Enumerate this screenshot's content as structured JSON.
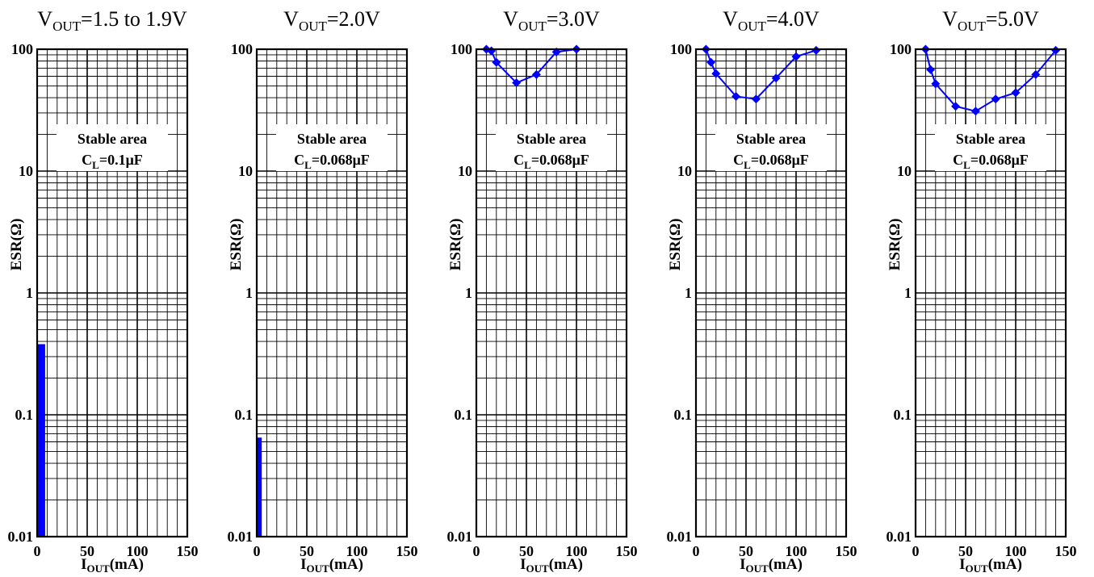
{
  "chart_data": [
    {
      "type": "scatter",
      "title": {
        "main": "V",
        "sub": "OUT",
        "rest": "=1.5 to 1.9V"
      },
      "xlabel": {
        "main": "I",
        "sub": "OUT",
        "rest": "(mA)"
      },
      "ylabel": "ESR(Ω)",
      "xlim": [
        0,
        150
      ],
      "ylim": [
        0.01,
        100
      ],
      "yscale": "log",
      "xticks": [
        "0",
        "50",
        "100",
        "150"
      ],
      "yticks": [
        "0.01",
        "0.1",
        "1",
        "10",
        "100"
      ],
      "grid": true,
      "annotation": {
        "line1": "Stable area",
        "line2_main": "C",
        "line2_sub": "L",
        "line2_rest": "=0.1μF"
      },
      "region": {
        "x": [
          0,
          8
        ],
        "y": [
          0.01,
          0.38
        ],
        "color": "#0000ff"
      },
      "series": []
    },
    {
      "type": "scatter",
      "title": {
        "main": "V",
        "sub": "OUT",
        "rest": "=2.0V"
      },
      "xlabel": {
        "main": "I",
        "sub": "OUT",
        "rest": "(mA)"
      },
      "ylabel": "ESR(Ω)",
      "xlim": [
        0,
        150
      ],
      "ylim": [
        0.01,
        100
      ],
      "yscale": "log",
      "xticks": [
        "0",
        "50",
        "100",
        "150"
      ],
      "yticks": [
        "0.01",
        "0.1",
        "1",
        "10",
        "100"
      ],
      "grid": true,
      "annotation": {
        "line1": "Stable area",
        "line2_main": "C",
        "line2_sub": "L",
        "line2_rest": "=0.068μF"
      },
      "region": {
        "x": [
          0,
          5
        ],
        "y": [
          0.01,
          0.065
        ],
        "color": "#0000ff"
      },
      "series": []
    },
    {
      "type": "line",
      "title": {
        "main": "V",
        "sub": "OUT",
        "rest": "=3.0V"
      },
      "xlabel": {
        "main": "I",
        "sub": "OUT",
        "rest": "(mA)"
      },
      "ylabel": "ESR(Ω)",
      "xlim": [
        0,
        150
      ],
      "ylim": [
        0.01,
        100
      ],
      "yscale": "log",
      "xticks": [
        "0",
        "50",
        "100",
        "150"
      ],
      "yticks": [
        "0.01",
        "0.1",
        "1",
        "10",
        "100"
      ],
      "grid": true,
      "annotation": {
        "line1": "Stable area",
        "line2_main": "C",
        "line2_sub": "L",
        "line2_rest": "=0.068μF"
      },
      "series": [
        {
          "color": "#0000ff",
          "x": [
            10,
            15,
            20,
            40,
            60,
            80,
            100
          ],
          "y": [
            100,
            97,
            78,
            53,
            62,
            95,
            100
          ]
        }
      ]
    },
    {
      "type": "line",
      "title": {
        "main": "V",
        "sub": "OUT",
        "rest": "=4.0V"
      },
      "xlabel": {
        "main": "I",
        "sub": "OUT",
        "rest": "(mA)"
      },
      "ylabel": "ESR(Ω)",
      "xlim": [
        0,
        150
      ],
      "ylim": [
        0.01,
        100
      ],
      "yscale": "log",
      "xticks": [
        "0",
        "50",
        "100",
        "150"
      ],
      "yticks": [
        "0.01",
        "0.1",
        "1",
        "10",
        "100"
      ],
      "grid": true,
      "annotation": {
        "line1": "Stable area",
        "line2_main": "C",
        "line2_sub": "L",
        "line2_rest": "=0.068μF"
      },
      "series": [
        {
          "color": "#0000ff",
          "x": [
            10,
            15,
            20,
            40,
            60,
            80,
            100,
            120
          ],
          "y": [
            100,
            78,
            63,
            41,
            39,
            58,
            87,
            98
          ]
        }
      ]
    },
    {
      "type": "line",
      "title": {
        "main": "V",
        "sub": "OUT",
        "rest": "=5.0V"
      },
      "xlabel": {
        "main": "I",
        "sub": "OUT",
        "rest": "(mA)"
      },
      "ylabel": "ESR(Ω)",
      "xlim": [
        0,
        150
      ],
      "ylim": [
        0.01,
        100
      ],
      "yscale": "log",
      "xticks": [
        "0",
        "50",
        "100",
        "150"
      ],
      "yticks": [
        "0.01",
        "0.1",
        "1",
        "10",
        "100"
      ],
      "grid": true,
      "annotation": {
        "line1": "Stable area",
        "line2_main": "C",
        "line2_sub": "L",
        "line2_rest": "=0.068μF"
      },
      "series": [
        {
          "color": "#0000ff",
          "x": [
            10,
            15,
            20,
            40,
            60,
            80,
            100,
            120,
            140
          ],
          "y": [
            100,
            68,
            52,
            34,
            31,
            39,
            44,
            62,
            98
          ]
        }
      ]
    }
  ]
}
